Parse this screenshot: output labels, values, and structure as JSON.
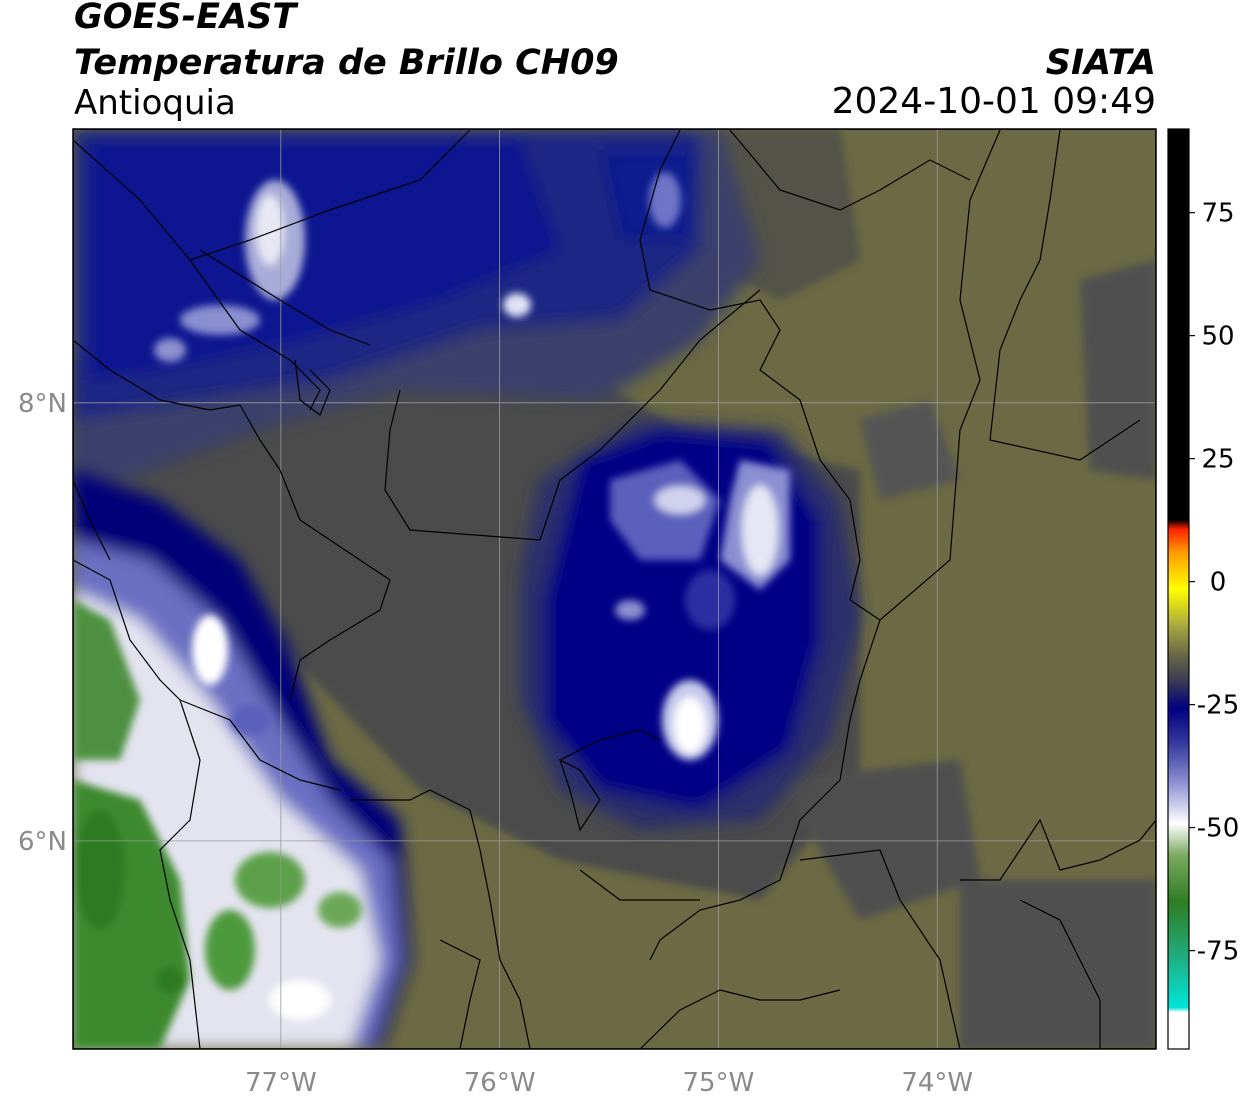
{
  "header": {
    "satellite": "GOES-EAST",
    "product": "Temperatura de Brillo CH09",
    "agency": "SIATA",
    "region": "Antioquia",
    "datetime": "2024-10-01 09:49"
  },
  "map": {
    "lon_range": [
      -77.95,
      -73.0
    ],
    "lat_range": [
      5.05,
      9.25
    ],
    "lon_ticks": [
      {
        "value": -77,
        "label": "77°W"
      },
      {
        "value": -76,
        "label": "76°W"
      },
      {
        "value": -75,
        "label": "75°W"
      },
      {
        "value": -74,
        "label": "74°W"
      }
    ],
    "lat_ticks": [
      {
        "value": 8,
        "label": "8°N"
      },
      {
        "value": 6,
        "label": "6°N"
      }
    ],
    "gridlines": true,
    "colors": {
      "very_cold": "#2e7d22",
      "white_core": "#ffffff",
      "deep_blue": "#000080",
      "mid_blue": "#2a2f80",
      "gray_warm": "#4d4d4d",
      "olive_warm": "#6b6b45"
    }
  },
  "colorbar": {
    "range": [
      -95,
      92
    ],
    "ticks": [
      {
        "value": 75,
        "label": "75"
      },
      {
        "value": 50,
        "label": "50"
      },
      {
        "value": 25,
        "label": "25"
      },
      {
        "value": 0,
        "label": "0"
      },
      {
        "value": -25,
        "label": "-25"
      },
      {
        "value": -50,
        "label": "-50"
      },
      {
        "value": -75,
        "label": "-75"
      }
    ]
  }
}
